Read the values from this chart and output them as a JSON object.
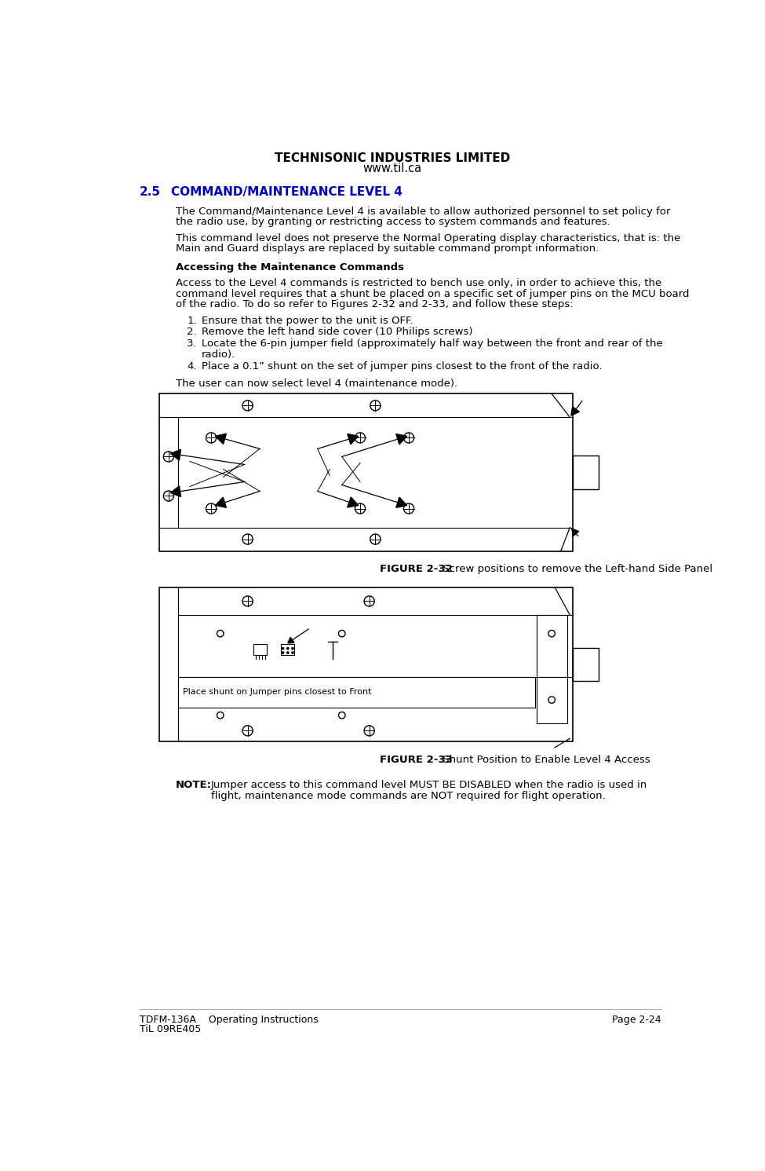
{
  "page_title_line1": "TECHNISONIC INDUSTRIES LIMITED",
  "page_title_line2": "www.til.ca",
  "footer_left_line1": "TDFM-136A    Operating Instructions",
  "footer_left_line2": "TiL 09RE405",
  "footer_right": "Page 2-24",
  "section_number": "2.5",
  "section_title": "COMMAND/MAINTENANCE LEVEL 4",
  "para1_line1": "The Command/Maintenance Level 4 is available to allow authorized personnel to set policy for",
  "para1_line2": "the radio use, by granting or restricting access to system commands and features.",
  "para2_line1": "This command level does not preserve the Normal Operating display characteristics, that is: the",
  "para2_line2": "Main and Guard displays are replaced by suitable command prompt information.",
  "subheading": "Accessing the Maintenance Commands",
  "para3_line1": "Access to the Level 4 commands is restricted to bench use only, in order to achieve this, the",
  "para3_line2": "command level requires that a shunt be placed on a specific set of jumper pins on the MCU board",
  "para3_line3": "of the radio. To do so refer to Figures 2-32 and 2-33, and follow these steps:",
  "list_items": [
    "Ensure that the power to the unit is OFF.",
    "Remove the left hand side cover (10 Philips screws)",
    "Locate the 6-pin jumper field (approximately half way between the front and rear of the radio).",
    "Place a 0.1” shunt on the set of jumper pins closest to the front of the radio."
  ],
  "list_item3_wrap": "radio).",
  "para4": "The user can now select level 4 (maintenance mode).",
  "fig1_caption_bold": "FIGURE 2-32",
  "fig1_caption_normal": " Screw positions to remove the Left-hand Side Panel",
  "fig2_caption_bold": "FIGURE 2-33",
  "fig2_caption_normal": " Shunt Position to Enable Level 4 Access",
  "note_bold": "NOTE:",
  "note_line1": "Jumper access to this command level MUST BE DISABLED when the radio is used in",
  "note_line2": "flight, maintenance mode commands are NOT required for flight operation.",
  "section_color": "#0000CC",
  "body_color": "#000000",
  "bg_color": "#ffffff",
  "font_size_header": 10.5,
  "font_size_body": 9.5,
  "font_size_footer": 9.0
}
